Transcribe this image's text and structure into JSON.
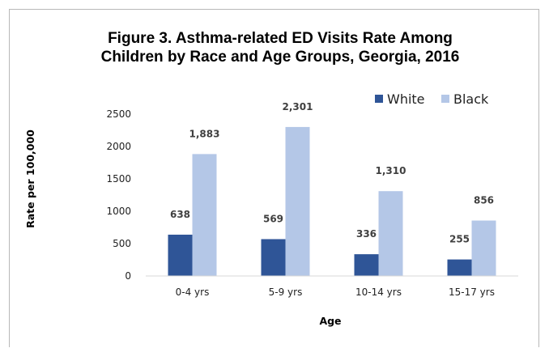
{
  "chart_data": {
    "type": "bar",
    "title": "Figure 3. Asthma-related ED Visits Rate Among Children by Race and Age Groups, Georgia, 2016",
    "title_lines": [
      "Figure 3. Asthma-related ED Visits Rate Among",
      "Children by Race and Age Groups, Georgia, 2016"
    ],
    "categories": [
      "0-4 yrs",
      "5-9 yrs",
      "10-14 yrs",
      "15-17 yrs"
    ],
    "series": [
      {
        "name": "White",
        "color": "#2f5597",
        "values": [
          638,
          569,
          336,
          255
        ],
        "labels": [
          "638",
          "569",
          "336",
          "255"
        ]
      },
      {
        "name": "Black",
        "color": "#b4c7e7",
        "values": [
          1883,
          2301,
          1310,
          856
        ],
        "labels": [
          "1,883",
          "2,301",
          "1,310",
          "856"
        ]
      }
    ],
    "xlabel": "Age",
    "ylabel": "Rate per 100,000",
    "ylim": [
      0,
      2500
    ],
    "yticks": [
      "0",
      "500",
      "1000",
      "1500",
      "2000",
      "2500"
    ],
    "grid": false,
    "legend_position": "top-right"
  }
}
